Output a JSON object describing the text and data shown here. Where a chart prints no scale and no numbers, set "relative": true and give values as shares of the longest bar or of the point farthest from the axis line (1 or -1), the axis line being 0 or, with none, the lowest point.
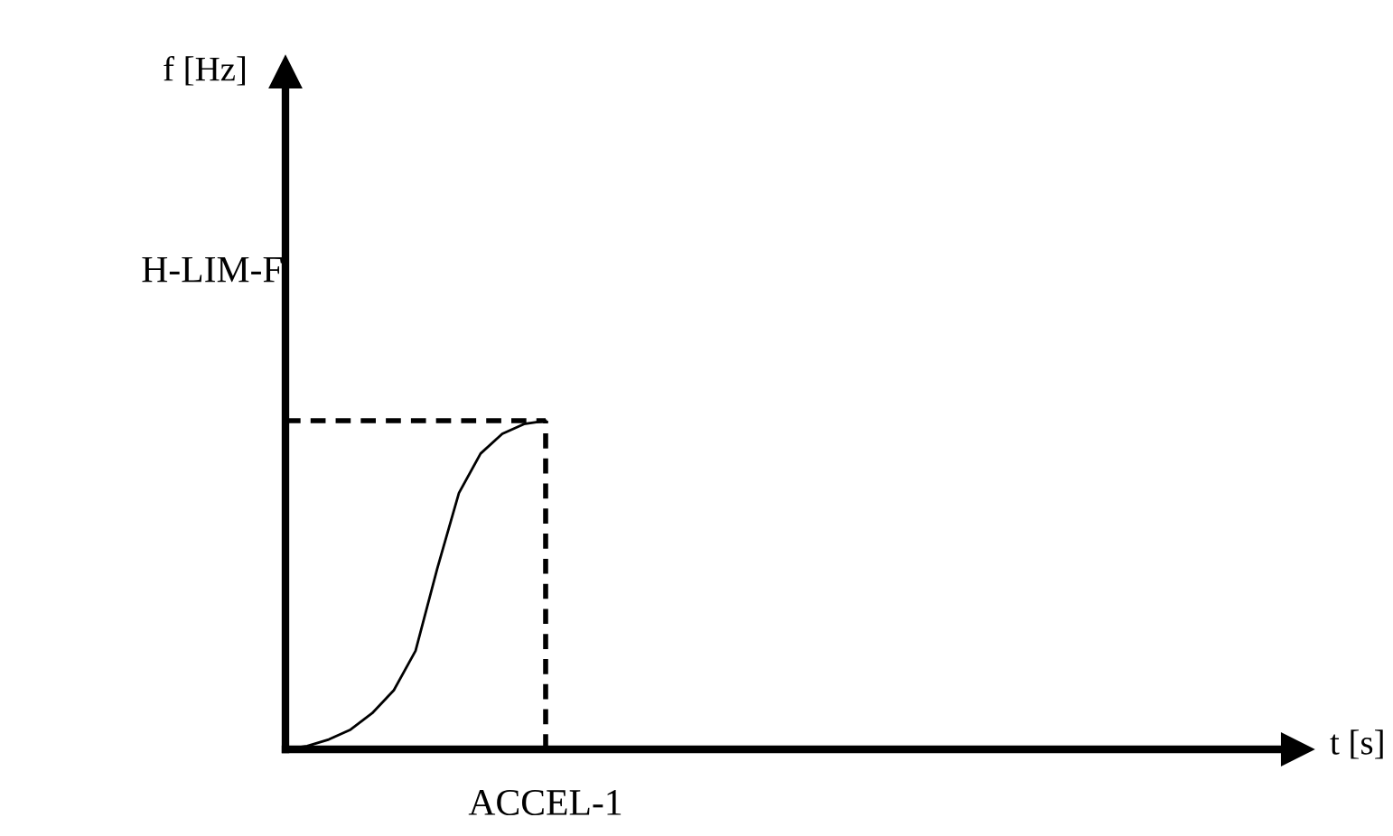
{
  "chart_data": {
    "type": "line",
    "relative": true,
    "annotations": [
      "t [s]",
      "f [Hz]"
    ],
    "categories": [
      null,
      null,
      null,
      null,
      null,
      null,
      null,
      null,
      null,
      null,
      null,
      null,
      null
    ],
    "series": [
      {
        "color": "#000000",
        "values": [
          0,
          0.01,
          0.03,
          0.06,
          0.11,
          0.18,
          0.3,
          0.55,
          0.78,
          0.9,
          0.96,
          0.99,
          1.0
        ]
      }
    ],
    "ref_lines": [
      {
        "axis": "y",
        "value": 1,
        "label": "H-LIM-F",
        "line_style": "dashed",
        "color": "#000000"
      },
      {
        "axis": "x",
        "label": "ACCEL-1",
        "line_style": "dashed",
        "color": "#000000"
      }
    ],
    "grid": false,
    "marker": "none",
    "line_style": "solid"
  }
}
